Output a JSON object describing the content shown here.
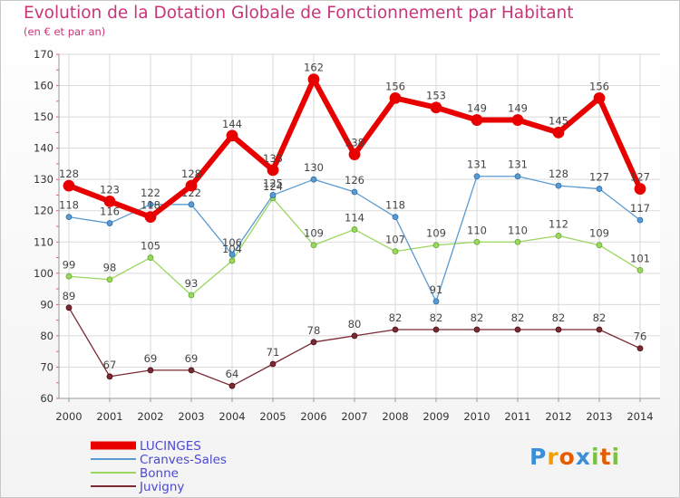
{
  "chart_data": {
    "type": "line",
    "title": "Evolution de la Dotation Globale de Fonctionnement par Habitant",
    "subtitle": "(en € et par an)",
    "x": [
      "2000",
      "2001",
      "2002",
      "2003",
      "2004",
      "2005",
      "2006",
      "2007",
      "2008",
      "2009",
      "2010",
      "2011",
      "2012",
      "2013",
      "2014"
    ],
    "ylim": [
      60,
      170
    ],
    "yticks": [
      60,
      70,
      80,
      90,
      100,
      110,
      120,
      130,
      140,
      150,
      160,
      170
    ],
    "grid": true,
    "series": [
      {
        "name": "LUCINGES",
        "color": "#e80000",
        "values": [
          128,
          123,
          118,
          128,
          144,
          133,
          162,
          138,
          156,
          153,
          149,
          149,
          145,
          156,
          127
        ]
      },
      {
        "name": "Cranves-Sales",
        "color": "#5b9ad1",
        "values": [
          118,
          116,
          122,
          122,
          106,
          125,
          130,
          126,
          118,
          91,
          131,
          131,
          128,
          127,
          117
        ]
      },
      {
        "name": "Bonne",
        "color": "#9bd65e",
        "values": [
          99,
          98,
          105,
          93,
          104,
          124,
          109,
          114,
          107,
          109,
          110,
          110,
          112,
          109,
          101
        ]
      },
      {
        "name": "Juvigny",
        "color": "#7a2a33",
        "values": [
          89,
          67,
          69,
          69,
          64,
          71,
          78,
          80,
          82,
          82,
          82,
          82,
          82,
          82,
          76
        ]
      }
    ],
    "legend_position": "bottom-left"
  },
  "logo": {
    "letters": [
      {
        "ch": "P",
        "color": "#3a8fd8"
      },
      {
        "ch": "r",
        "color": "#f0a000"
      },
      {
        "ch": "o",
        "color": "#e65c00"
      },
      {
        "ch": "x",
        "color": "#3a8fd8"
      },
      {
        "ch": "i",
        "color": "#7cc242"
      },
      {
        "ch": "t",
        "color": "#e65c00"
      },
      {
        "ch": "i",
        "color": "#7cc242"
      }
    ]
  }
}
